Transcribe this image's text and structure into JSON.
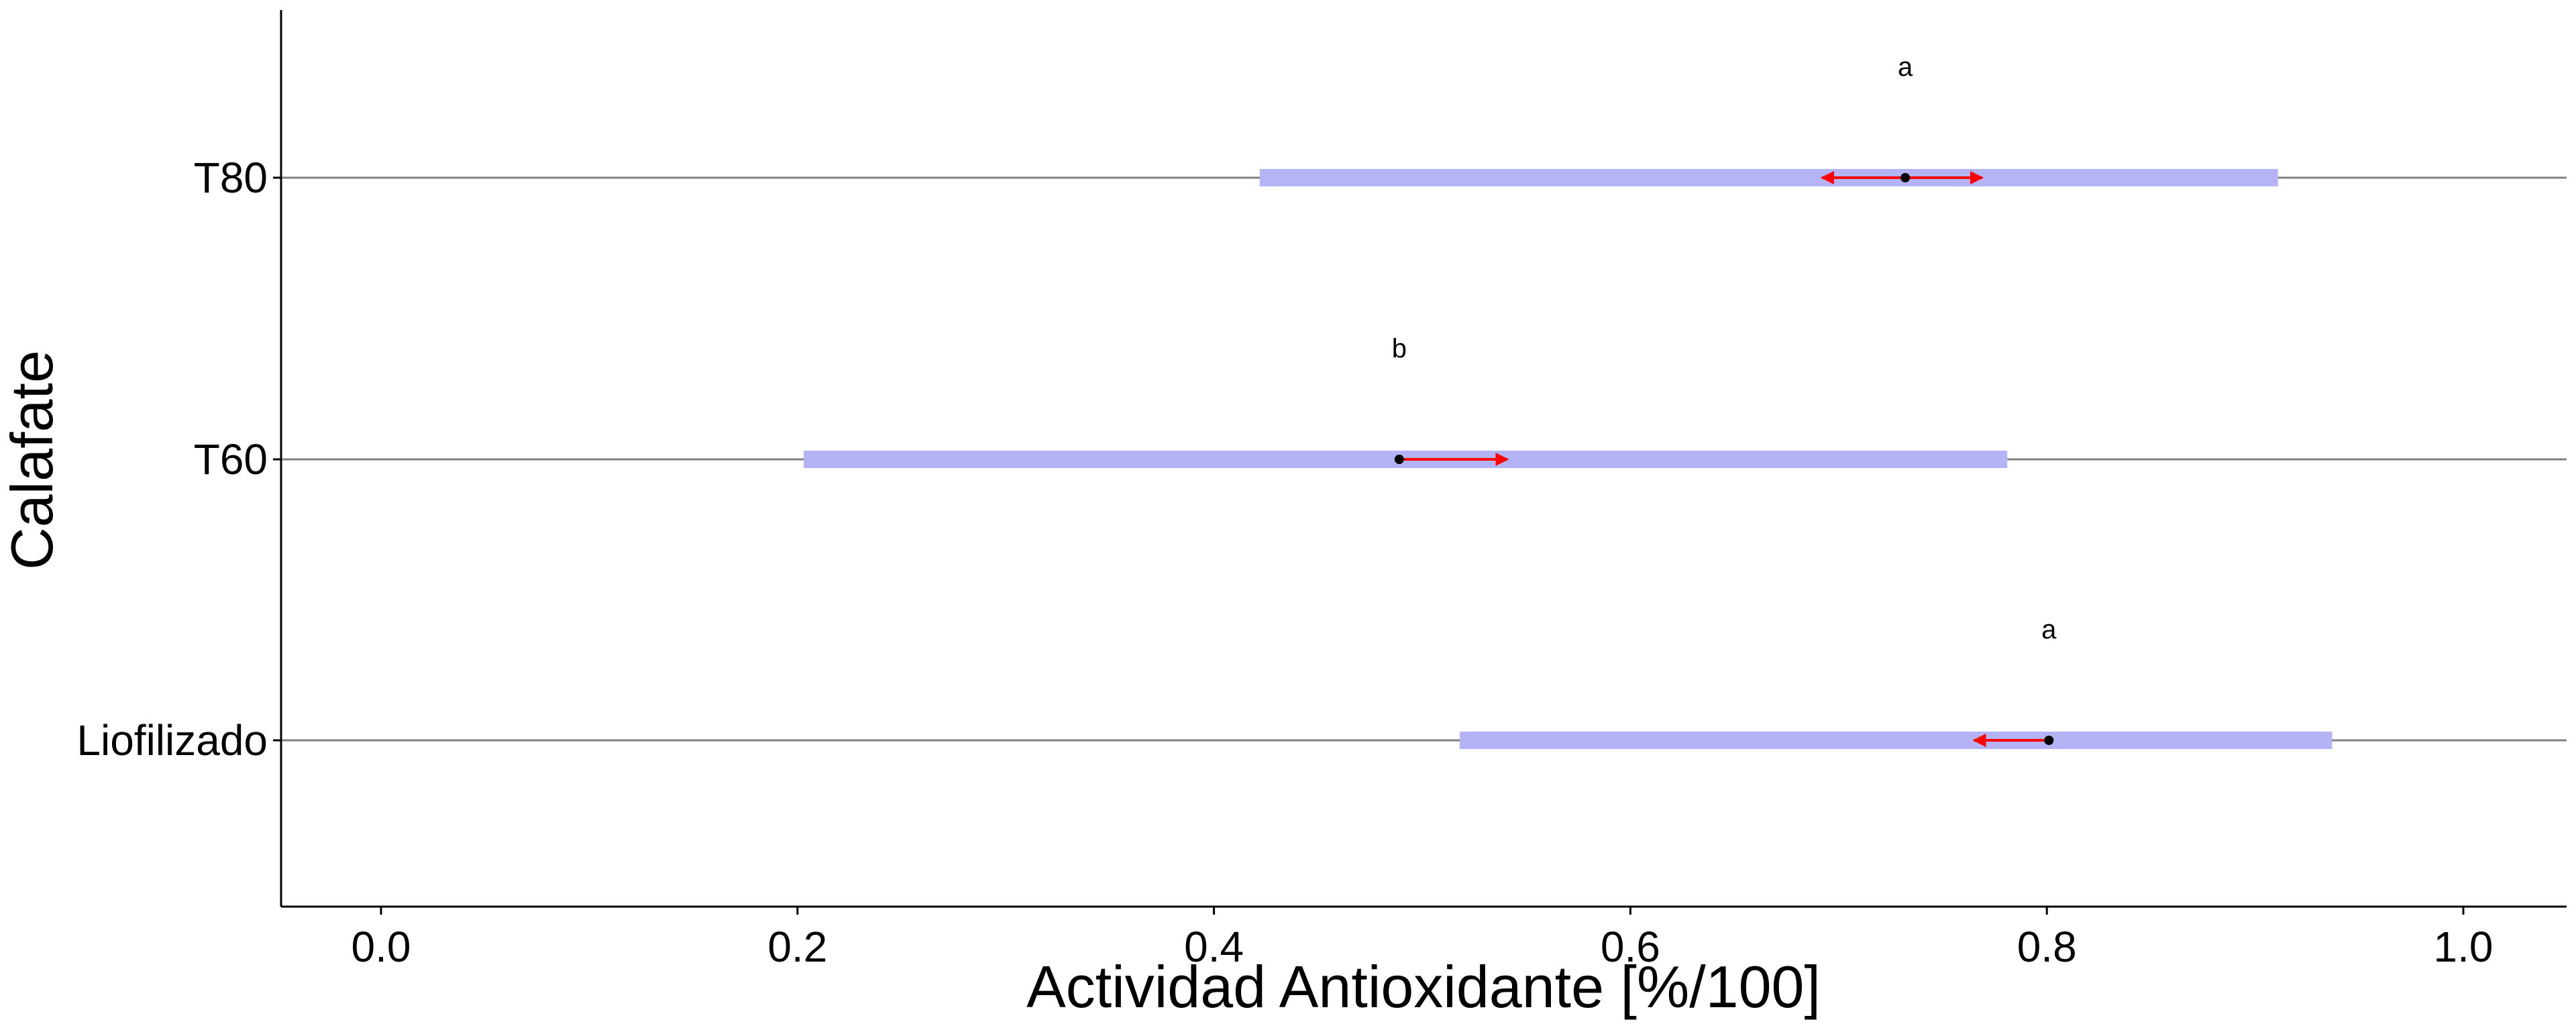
{
  "chart_data": {
    "type": "interval",
    "xlabel": "Actividad Antioxidante [%/100]",
    "ylabel": "Calafate",
    "xlim": [
      -0.05,
      1.05
    ],
    "xticks": [
      0.0,
      0.2,
      0.4,
      0.6,
      0.8,
      1.0
    ],
    "xtick_labels": [
      "0.0",
      "0.2",
      "0.4",
      "0.6",
      "0.8",
      "1.0"
    ],
    "categories": [
      "Liofilizado",
      "T60",
      "T80"
    ],
    "groups": [
      {
        "name": "Liofilizado",
        "mean": 0.801,
        "ci_low": 0.518,
        "ci_high": 0.937,
        "arrow_low": 0.765,
        "arrow_high": 0.801,
        "letter": "a"
      },
      {
        "name": "T60",
        "mean": 0.489,
        "ci_low": 0.203,
        "ci_high": 0.781,
        "arrow_low": 0.489,
        "arrow_high": 0.541,
        "letter": "b"
      },
      {
        "name": "T80",
        "mean": 0.732,
        "ci_low": 0.422,
        "ci_high": 0.911,
        "arrow_low": 0.692,
        "arrow_high": 0.769,
        "letter": "a"
      }
    ],
    "colors": {
      "interval": "#b3b3f5",
      "arrow": "#ff0000",
      "point": "#000000",
      "gridline": "#808080",
      "axis": "#000000"
    }
  }
}
